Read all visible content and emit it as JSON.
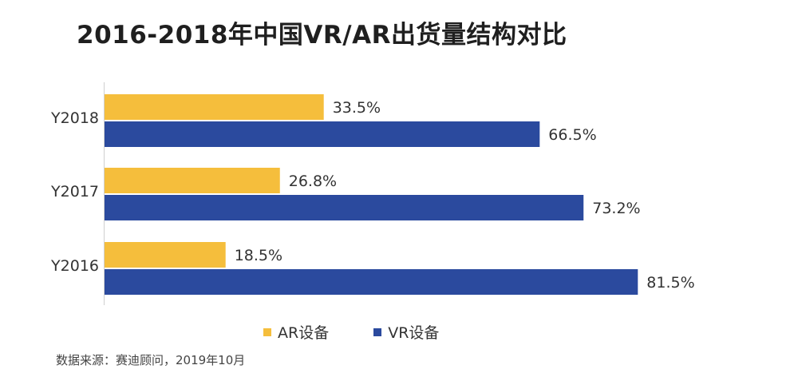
{
  "chart_data": {
    "type": "bar",
    "orientation": "horizontal",
    "title": "2016-2018年中国VR/AR出货量结构对比",
    "categories": [
      "Y2018",
      "Y2017",
      "Y2016"
    ],
    "series": [
      {
        "name": "AR设备",
        "values": [
          33.5,
          26.8,
          18.5
        ],
        "labels": [
          "33.5%",
          "26.8%",
          "18.5%"
        ],
        "color": "#F5BE3C"
      },
      {
        "name": "VR设备",
        "values": [
          66.5,
          73.2,
          81.5
        ],
        "labels": [
          "66.5%",
          "73.2%",
          "81.5%"
        ],
        "color": "#2B4A9E"
      }
    ],
    "xlim": [
      0,
      100
    ],
    "grid": false,
    "legend": "bottom"
  },
  "source_note": "数据来源：赛迪顾问，2019年10月"
}
